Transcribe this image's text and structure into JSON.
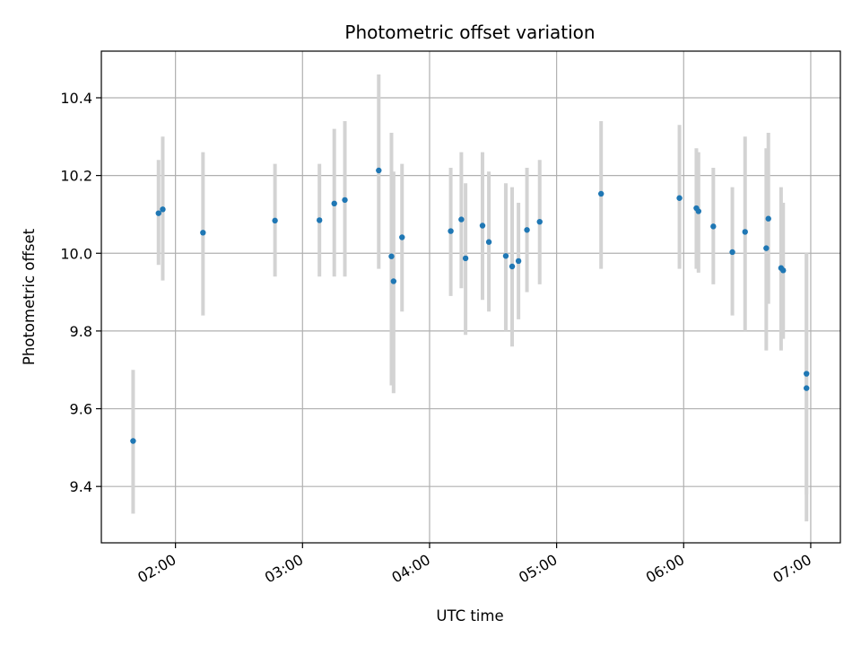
{
  "chart_data": {
    "type": "scatter",
    "title": "Photometric offset variation",
    "xlabel": "UTC time",
    "ylabel": "Photometric offset",
    "x_tick_labels": [
      "02:00",
      "03:00",
      "04:00",
      "05:00",
      "06:00",
      "07:00"
    ],
    "y_tick_labels": [
      "9.4",
      "9.6",
      "9.8",
      "10.0",
      "10.2",
      "10.4"
    ],
    "y_ticks": [
      9.4,
      9.6,
      9.8,
      10.0,
      10.2,
      10.4
    ],
    "xlim": [
      "01:25",
      "07:14"
    ],
    "ylim": [
      9.255,
      10.52
    ],
    "grid": true,
    "marker_color": "#1f77b4",
    "errorbar_color": "#d3d3d3",
    "points": [
      {
        "t": "01:40",
        "y": 9.517,
        "lo": 9.33,
        "hi": 9.7
      },
      {
        "t": "01:52",
        "y": 10.103,
        "lo": 9.97,
        "hi": 10.24
      },
      {
        "t": "01:54",
        "y": 10.113,
        "lo": 9.93,
        "hi": 10.3
      },
      {
        "t": "02:13",
        "y": 10.053,
        "lo": 9.84,
        "hi": 10.26
      },
      {
        "t": "02:47",
        "y": 10.084,
        "lo": 9.94,
        "hi": 10.23
      },
      {
        "t": "03:08",
        "y": 10.085,
        "lo": 9.94,
        "hi": 10.23
      },
      {
        "t": "03:15",
        "y": 10.128,
        "lo": 9.94,
        "hi": 10.32
      },
      {
        "t": "03:20",
        "y": 10.137,
        "lo": 9.94,
        "hi": 10.34
      },
      {
        "t": "03:36",
        "y": 10.213,
        "lo": 9.96,
        "hi": 10.46
      },
      {
        "t": "03:42",
        "y": 9.992,
        "lo": 9.66,
        "hi": 10.31
      },
      {
        "t": "03:43",
        "y": 9.928,
        "lo": 9.64,
        "hi": 10.21
      },
      {
        "t": "03:47",
        "y": 10.041,
        "lo": 9.85,
        "hi": 10.23
      },
      {
        "t": "04:10",
        "y": 10.057,
        "lo": 9.89,
        "hi": 10.22
      },
      {
        "t": "04:15",
        "y": 10.087,
        "lo": 9.91,
        "hi": 10.26
      },
      {
        "t": "04:17",
        "y": 9.987,
        "lo": 9.79,
        "hi": 10.18
      },
      {
        "t": "04:25",
        "y": 10.071,
        "lo": 9.88,
        "hi": 10.26
      },
      {
        "t": "04:28",
        "y": 10.029,
        "lo": 9.85,
        "hi": 10.21
      },
      {
        "t": "04:36",
        "y": 9.993,
        "lo": 9.8,
        "hi": 10.18
      },
      {
        "t": "04:39",
        "y": 9.966,
        "lo": 9.76,
        "hi": 10.17
      },
      {
        "t": "04:42",
        "y": 9.98,
        "lo": 9.83,
        "hi": 10.13
      },
      {
        "t": "04:46",
        "y": 10.06,
        "lo": 9.9,
        "hi": 10.22
      },
      {
        "t": "04:52",
        "y": 10.081,
        "lo": 9.92,
        "hi": 10.24
      },
      {
        "t": "05:21",
        "y": 10.153,
        "lo": 9.96,
        "hi": 10.34
      },
      {
        "t": "05:58",
        "y": 10.142,
        "lo": 9.96,
        "hi": 10.33
      },
      {
        "t": "06:06",
        "y": 10.116,
        "lo": 9.96,
        "hi": 10.27
      },
      {
        "t": "06:07",
        "y": 10.108,
        "lo": 9.95,
        "hi": 10.26
      },
      {
        "t": "06:14",
        "y": 10.069,
        "lo": 9.92,
        "hi": 10.22
      },
      {
        "t": "06:23",
        "y": 10.003,
        "lo": 9.84,
        "hi": 10.17
      },
      {
        "t": "06:29",
        "y": 10.055,
        "lo": 9.8,
        "hi": 10.3
      },
      {
        "t": "06:39",
        "y": 10.013,
        "lo": 9.75,
        "hi": 10.27
      },
      {
        "t": "06:40",
        "y": 10.089,
        "lo": 9.87,
        "hi": 10.31
      },
      {
        "t": "06:46",
        "y": 9.962,
        "lo": 9.75,
        "hi": 10.17
      },
      {
        "t": "06:47",
        "y": 9.956,
        "lo": 9.78,
        "hi": 10.13
      },
      {
        "t": "06:58",
        "y": 9.653,
        "lo": 9.31,
        "hi": 10.0
      },
      {
        "t": "06:58",
        "y": 9.69,
        "lo": 9.38,
        "hi": 10.0
      }
    ]
  }
}
